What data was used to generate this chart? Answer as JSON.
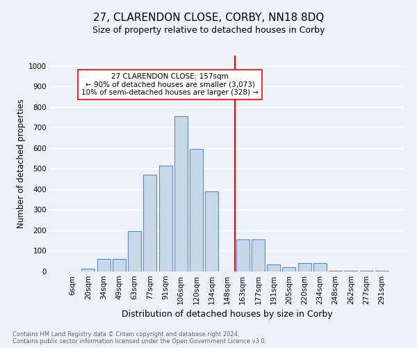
{
  "title": "27, CLARENDON CLOSE, CORBY, NN18 8DQ",
  "subtitle": "Size of property relative to detached houses in Corby",
  "xlabel": "Distribution of detached houses by size in Corby",
  "ylabel": "Number of detached properties",
  "footer_line1": "Contains HM Land Registry data © Crown copyright and database right 2024.",
  "footer_line2": "Contains public sector information licensed under the Open Government Licence v3.0.",
  "categories": [
    "6sqm",
    "20sqm",
    "34sqm",
    "49sqm",
    "63sqm",
    "77sqm",
    "91sqm",
    "106sqm",
    "120sqm",
    "134sqm",
    "148sqm",
    "163sqm",
    "177sqm",
    "191sqm",
    "205sqm",
    "220sqm",
    "234sqm",
    "248sqm",
    "262sqm",
    "277sqm",
    "291sqm"
  ],
  "values": [
    0,
    15,
    60,
    60,
    197,
    470,
    515,
    755,
    595,
    390,
    0,
    155,
    155,
    35,
    22,
    42,
    42,
    5,
    3,
    3,
    5
  ],
  "bar_color": "#c8d8e8",
  "bar_edge_color": "#5a8abf",
  "vline_color": "red",
  "annotation_text": "27 CLARENDON CLOSE: 157sqm\n← 90% of detached houses are smaller (3,073)\n10% of semi-detached houses are larger (328) →",
  "annotation_box_color": "white",
  "annotation_box_edge": "red",
  "ylim": [
    0,
    1050
  ],
  "yticks": [
    0,
    100,
    200,
    300,
    400,
    500,
    600,
    700,
    800,
    900,
    1000
  ],
  "background_color": "#eef2f8",
  "grid_color": "white",
  "title_fontsize": 11,
  "subtitle_fontsize": 9,
  "xlabel_fontsize": 9,
  "ylabel_fontsize": 8.5,
  "tick_fontsize": 7.5,
  "annotation_fontsize": 7.5,
  "footer_fontsize": 6.0
}
